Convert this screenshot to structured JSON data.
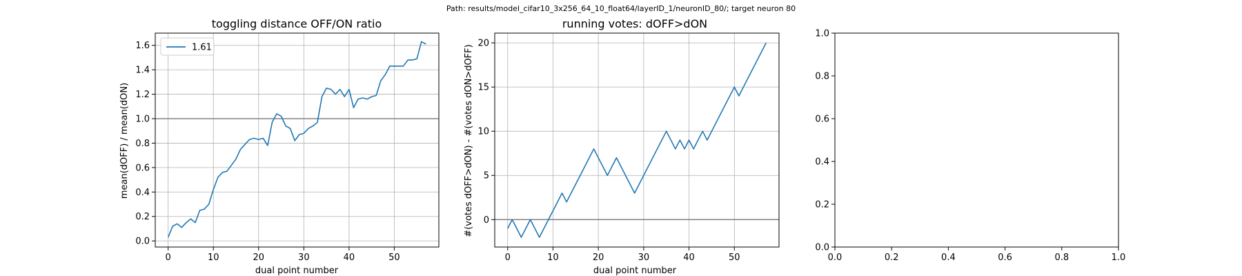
{
  "suptitle": "Path: results/model_cifar10_3x256_64_10_float64/layerID_1/neuronID_80/; target neuron 80",
  "colors": {
    "series": "#1f77b4",
    "refline": "#808080",
    "grid": "#b0b0b0",
    "axes": "#000000"
  },
  "chart_data": [
    {
      "type": "line",
      "title": "toggling distance OFF/ON ratio",
      "xlabel": "dual point number",
      "ylabel": "mean(dOFF) / mean(dON)",
      "xlim": [
        -2.85,
        59.85
      ],
      "ylim": [
        -0.05,
        1.7
      ],
      "xticks": [
        0,
        10,
        20,
        30,
        40,
        50
      ],
      "yticks": [
        0.0,
        0.2,
        0.4,
        0.6,
        0.8,
        1.0,
        1.2,
        1.4,
        1.6
      ],
      "ytick_labels": [
        "0.0",
        "0.2",
        "0.4",
        "0.6",
        "0.8",
        "1.0",
        "1.2",
        "1.4",
        "1.6"
      ],
      "grid": true,
      "legend": {
        "location": "upper left",
        "entries": [
          "1.61"
        ]
      },
      "hline": 1.0,
      "series": [
        {
          "name": "1.61",
          "x": [
            0,
            1,
            2,
            3,
            4,
            5,
            6,
            7,
            8,
            9,
            10,
            11,
            12,
            13,
            14,
            15,
            16,
            17,
            18,
            19,
            20,
            21,
            22,
            23,
            24,
            25,
            26,
            27,
            28,
            29,
            30,
            31,
            32,
            33,
            34,
            35,
            36,
            37,
            38,
            39,
            40,
            41,
            42,
            43,
            44,
            45,
            46,
            47,
            48,
            49,
            50,
            51,
            52,
            53,
            54,
            55,
            56,
            57
          ],
          "values": [
            0.03,
            0.12,
            0.14,
            0.11,
            0.15,
            0.18,
            0.15,
            0.25,
            0.26,
            0.3,
            0.42,
            0.52,
            0.56,
            0.57,
            0.62,
            0.67,
            0.75,
            0.79,
            0.83,
            0.84,
            0.83,
            0.84,
            0.78,
            0.97,
            1.04,
            1.02,
            0.94,
            0.92,
            0.82,
            0.87,
            0.88,
            0.92,
            0.94,
            0.97,
            1.18,
            1.25,
            1.24,
            1.2,
            1.24,
            1.18,
            1.24,
            1.09,
            1.16,
            1.17,
            1.16,
            1.18,
            1.19,
            1.31,
            1.36,
            1.43,
            1.43,
            1.43,
            1.43,
            1.48,
            1.48,
            1.49,
            1.63,
            1.61
          ]
        }
      ]
    },
    {
      "type": "line",
      "title": "running votes: dOFF>dON",
      "xlabel": "dual point number",
      "ylabel": "#(votes dOFF>dON) - #(votes dON>dOFF)",
      "xlim": [
        -2.85,
        59.85
      ],
      "ylim": [
        -3.1,
        21.1
      ],
      "xticks": [
        0,
        10,
        20,
        30,
        40,
        50
      ],
      "yticks": [
        0,
        5,
        10,
        15,
        20
      ],
      "grid": true,
      "hline": 0,
      "series": [
        {
          "x": [
            0,
            1,
            3,
            5,
            7,
            12,
            13,
            19,
            22,
            24,
            28,
            35,
            37,
            38,
            39,
            40,
            41,
            43,
            44,
            50,
            51,
            57
          ],
          "values": [
            -1,
            0,
            -2,
            0,
            -2,
            3,
            2,
            8,
            5,
            7,
            3,
            10,
            8,
            9,
            8,
            9,
            8,
            10,
            9,
            15,
            14,
            20
          ]
        }
      ]
    },
    {
      "type": "line",
      "title": "",
      "xlim": [
        0,
        1
      ],
      "ylim": [
        0,
        1
      ],
      "xticks": [
        0.0,
        0.2,
        0.4,
        0.6,
        0.8,
        1.0
      ],
      "yticks": [
        0.0,
        0.2,
        0.4,
        0.6,
        0.8,
        1.0
      ],
      "xtick_labels": [
        "0.0",
        "0.2",
        "0.4",
        "0.6",
        "0.8",
        "1.0"
      ],
      "ytick_labels": [
        "0.0",
        "0.2",
        "0.4",
        "0.6",
        "0.8",
        "1.0"
      ],
      "grid": false,
      "series": []
    }
  ]
}
